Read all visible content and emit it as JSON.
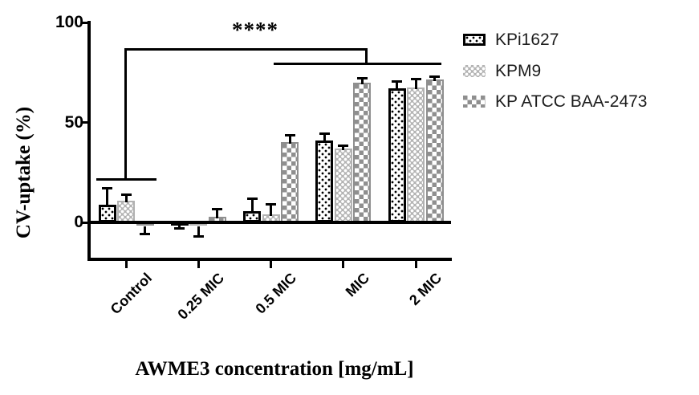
{
  "chart_data": {
    "type": "bar",
    "title": "",
    "xlabel": "AWME3 concentration [mg/mL]",
    "ylabel": "CV-uptake (%)",
    "categories": [
      "Control",
      "0.25 MIC",
      "0.5 MIC",
      "MIC",
      "2 MIC"
    ],
    "series": [
      {
        "name": "KPi1627",
        "pattern": "black-dots-on-white",
        "values": [
          9,
          1,
          5.5,
          41,
          67
        ],
        "errors": [
          8,
          4,
          6.5,
          3.5,
          3.5
        ],
        "error_dirs": [
          "up",
          "down",
          "up",
          "up",
          "up"
        ]
      },
      {
        "name": "KPM9",
        "pattern": "white-dots-on-light-gray",
        "values": [
          11,
          -2,
          4,
          37,
          67.5
        ],
        "errors": [
          3,
          5,
          5,
          1.5,
          4
        ],
        "error_dirs": [
          "up",
          "down",
          "up",
          "up",
          "up"
        ]
      },
      {
        "name": "KP ATCC BAA-2473",
        "pattern": "white-checkers-on-gray",
        "values": [
          -2,
          3,
          40,
          70,
          71.5
        ],
        "errors": [
          4,
          3.5,
          3.5,
          2,
          1.5
        ],
        "error_dirs": [
          "down",
          "up",
          "up",
          "up",
          "up"
        ]
      }
    ],
    "yticks": [
      0,
      50,
      100
    ],
    "ylim": [
      -18,
      100
    ],
    "grid": false,
    "legend_position": "right",
    "significance": {
      "label": "****",
      "from_group": "Control",
      "to_groups": [
        "0.5 MIC",
        "MIC",
        "2 MIC"
      ]
    }
  },
  "colors": {
    "axis_black": "#000000",
    "kpm9_gray": "#b4b4b4",
    "atcc_gray": "#8f8f8f",
    "background": "#ffffff"
  }
}
